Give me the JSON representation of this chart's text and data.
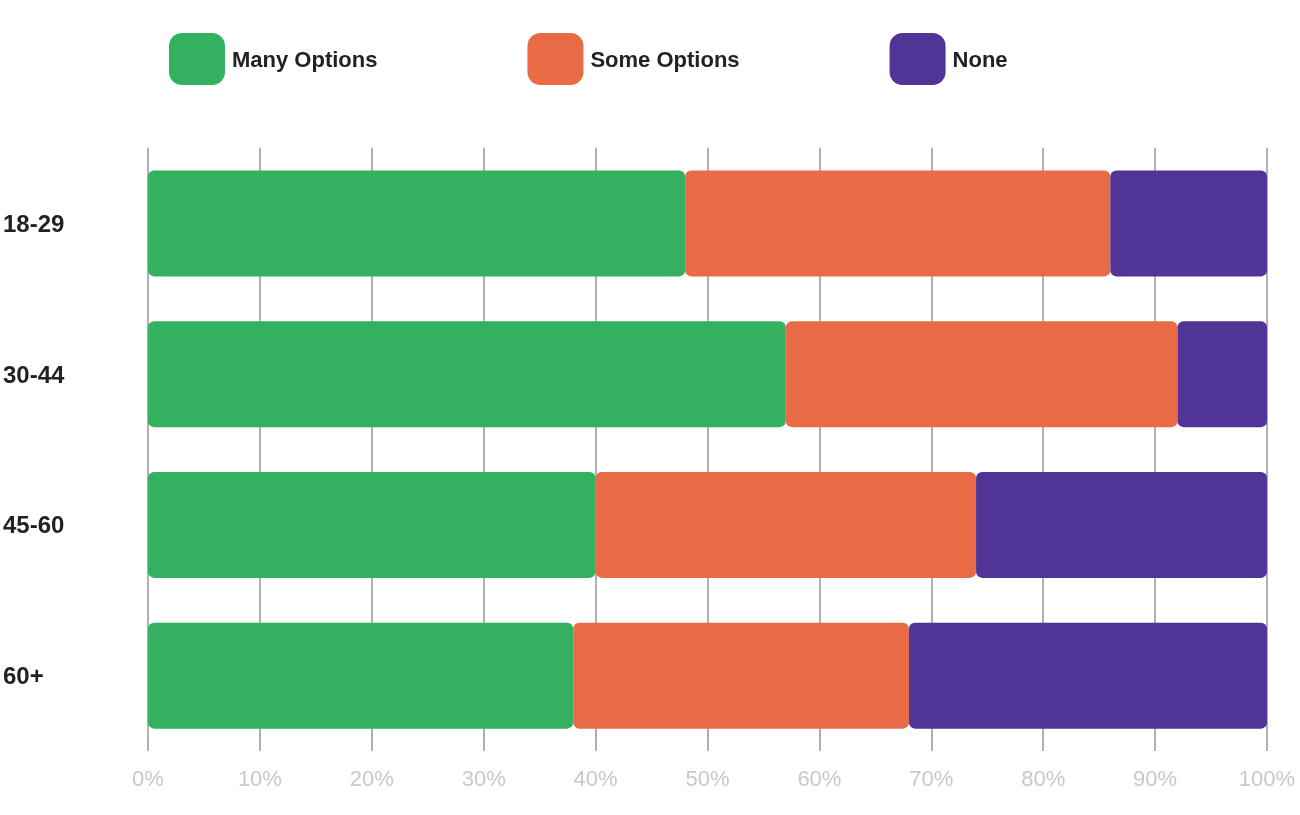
{
  "chart_data": {
    "type": "bar",
    "orientation": "horizontal",
    "stacked": true,
    "categories": [
      "18-29",
      "30-44",
      "45-60",
      "60+"
    ],
    "series": [
      {
        "name": "Many Options",
        "color": "#34b160",
        "values": [
          48,
          57,
          40,
          38
        ]
      },
      {
        "name": "Some Options",
        "color": "#e86b45",
        "values": [
          38,
          35,
          34,
          30
        ]
      },
      {
        "name": "None",
        "color": "#503596",
        "values": [
          14,
          8,
          26,
          32
        ]
      }
    ],
    "xlim": [
      0,
      100
    ],
    "xticks": [
      {
        "value": 0,
        "label": "0%"
      },
      {
        "value": 10,
        "label": "10%"
      },
      {
        "value": 20,
        "label": "20%"
      },
      {
        "value": 30,
        "label": "30%"
      },
      {
        "value": 40,
        "label": "40%"
      },
      {
        "value": 50,
        "label": "50%"
      },
      {
        "value": 60,
        "label": "60%"
      },
      {
        "value": 70,
        "label": "70%"
      },
      {
        "value": 80,
        "label": "80%"
      },
      {
        "value": 90,
        "label": "90%"
      },
      {
        "value": 100,
        "label": "100%"
      }
    ],
    "grid": "x",
    "legend": "top"
  }
}
